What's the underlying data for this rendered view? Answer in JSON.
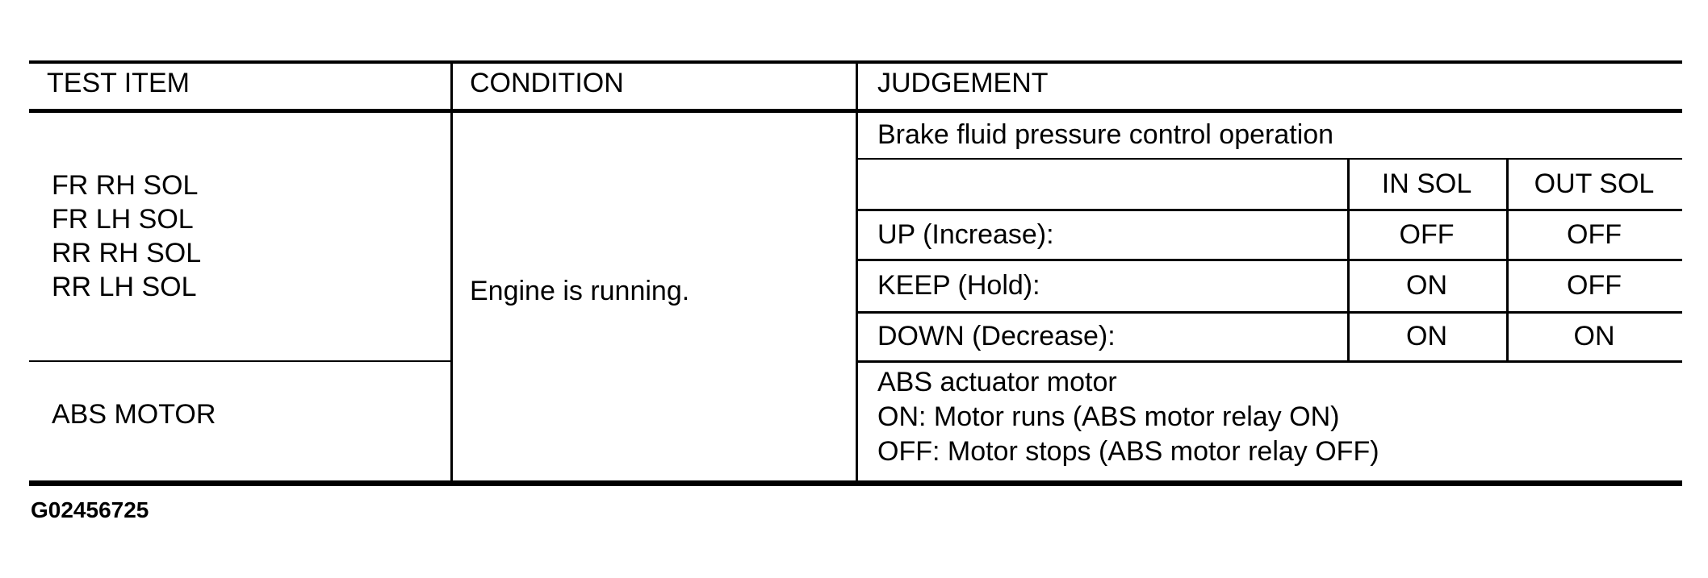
{
  "figure_id": "G02456725",
  "colors": {
    "ink": "#000000",
    "background": "#ffffff"
  },
  "table": {
    "headers": {
      "test_item": "TEST ITEM",
      "condition": "CONDITION",
      "judgement": "JUDGEMENT"
    },
    "test_item_rows": {
      "solenoids": {
        "lines": [
          "FR RH SOL",
          "FR LH SOL",
          "RR RH SOL",
          "RR LH SOL"
        ]
      },
      "motor": "ABS MOTOR"
    },
    "condition": "Engine is running.",
    "judgement": {
      "solenoid_section": {
        "title": "Brake fluid pressure control operation",
        "columns": {
          "in_sol": "IN SOL",
          "out_sol": "OUT SOL"
        },
        "rows": [
          {
            "label": "UP (Increase):",
            "in_sol": "OFF",
            "out_sol": "OFF"
          },
          {
            "label": "KEEP (Hold):",
            "in_sol": "ON",
            "out_sol": "OFF"
          },
          {
            "label": "DOWN (Decrease):",
            "in_sol": "ON",
            "out_sol": "ON"
          }
        ]
      },
      "motor_section": {
        "lines": [
          "ABS actuator motor",
          "ON: Motor runs (ABS motor relay ON)",
          "OFF: Motor stops (ABS motor relay OFF)"
        ]
      }
    }
  }
}
